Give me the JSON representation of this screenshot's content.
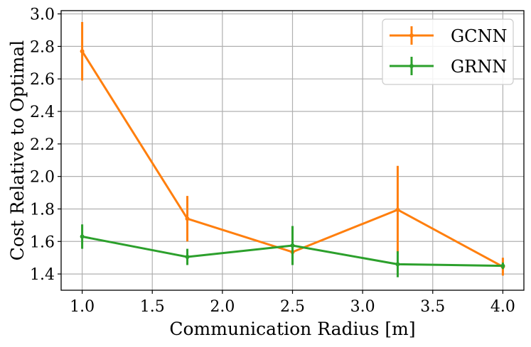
{
  "chart_data": {
    "type": "line",
    "title": "",
    "xlabel": "Communication Radius [m]",
    "ylabel": "Cost Relative to Optimal",
    "xlim": [
      0.85,
      4.15
    ],
    "ylim": [
      1.3,
      3.02
    ],
    "xticks": [
      1.0,
      1.5,
      2.0,
      2.5,
      3.0,
      3.5,
      4.0
    ],
    "xtick_labels": [
      "1.0",
      "1.5",
      "2.0",
      "2.5",
      "3.0",
      "3.5",
      "4.0"
    ],
    "yticks": [
      1.4,
      1.6,
      1.8,
      2.0,
      2.2,
      2.4,
      2.6,
      2.8,
      3.0
    ],
    "ytick_labels": [
      "1.4",
      "1.6",
      "1.8",
      "2.0",
      "2.2",
      "2.4",
      "2.6",
      "2.8",
      "3.0"
    ],
    "grid": true,
    "legend_position": "top-right",
    "x": [
      1.0,
      1.75,
      2.5,
      3.25,
      4.0
    ],
    "series": [
      {
        "name": "GCNN",
        "color": "#ff7f0e",
        "values": [
          2.77,
          1.74,
          1.535,
          1.795,
          1.445
        ],
        "error": [
          0.18,
          0.14,
          0.03,
          0.27,
          0.055
        ]
      },
      {
        "name": "GRNN",
        "color": "#2ca02c",
        "values": [
          1.63,
          1.505,
          1.575,
          1.46,
          1.45
        ],
        "error": [
          0.075,
          0.05,
          0.12,
          0.08,
          0.02
        ]
      }
    ]
  }
}
